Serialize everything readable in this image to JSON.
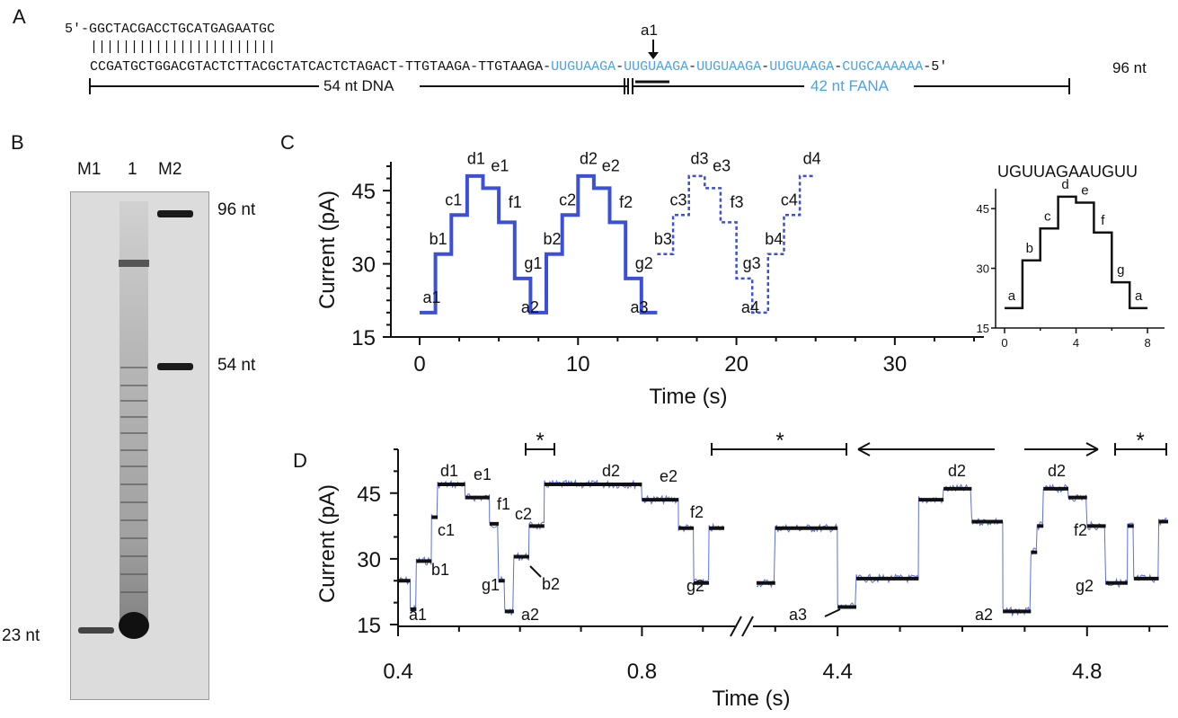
{
  "panels": {
    "a": "A",
    "b": "B",
    "c": "C",
    "d": "D"
  },
  "seq": {
    "top": "5′-GGCTACGACCTGCATGAGAATGC",
    "ticks": "|||||||||||||||||||||||",
    "dna": "CCGATGCTGGACGTACTCTTACGCTATCACTCTAGACT-TTGTAAGA-TTGTAAGA-",
    "fana": [
      "UUGUAAGA",
      "UUGUAAGA",
      "UUGUAAGA",
      "UUGUAAGA",
      "CUGCAAAAAA"
    ],
    "sep": "-",
    "end": "-5′",
    "len": "96 nt",
    "a1": "a1",
    "dna_label": "54 nt DNA",
    "fana_label": "42 nt FANA"
  },
  "colors": {
    "fana": "#4aa3e8",
    "trace": "#3b4fd8",
    "trace_d": "#5a6fe0",
    "black": "#111111"
  },
  "gel": {
    "lanes": [
      "M1",
      "1",
      "M2"
    ],
    "sizes": [
      "96 nt",
      "54 nt",
      "23 nt"
    ]
  },
  "chart_data": [
    {
      "type": "line",
      "title": "",
      "xlabel": "Time (s)",
      "ylabel": "Current (pA)",
      "xlim": [
        0,
        35
      ],
      "ylim": [
        15,
        50
      ],
      "xticks": [
        0,
        10,
        20,
        30
      ],
      "yticks": [
        15,
        30,
        45
      ],
      "series": [
        {
          "style": "solid",
          "x": [
            0,
            1,
            1,
            2,
            2,
            3,
            3,
            4,
            4,
            5,
            5,
            6,
            6,
            7,
            7,
            8,
            8,
            9,
            9,
            10,
            10,
            11,
            11,
            12,
            12,
            13,
            13,
            14,
            14,
            15
          ],
          "y": [
            20,
            20,
            32,
            32,
            40,
            40,
            48,
            48,
            45.5,
            45.5,
            38.5,
            38.5,
            27,
            27,
            20,
            20,
            32,
            32,
            40,
            40,
            48,
            48,
            45.5,
            45.5,
            38.5,
            38.5,
            27,
            27,
            20,
            20
          ]
        },
        {
          "style": "dashed",
          "x": [
            15,
            16,
            16,
            17,
            17,
            18,
            18,
            19,
            19,
            20,
            20,
            21,
            21,
            22,
            22,
            23,
            23,
            24,
            24,
            25
          ],
          "y": [
            32,
            32,
            40,
            40,
            48,
            48,
            45.5,
            45.5,
            38.5,
            38.5,
            27,
            27,
            20,
            20,
            32,
            32,
            40,
            40,
            48,
            48
          ]
        }
      ],
      "labels": [
        {
          "t": "a1",
          "x": 0.2,
          "y": 22
        },
        {
          "t": "b1",
          "x": 0.6,
          "y": 34
        },
        {
          "t": "c1",
          "x": 1.6,
          "y": 42
        },
        {
          "t": "d1",
          "x": 3.0,
          "y": 50.5
        },
        {
          "t": "e1",
          "x": 4.5,
          "y": 49
        },
        {
          "t": "f1",
          "x": 5.6,
          "y": 41.5
        },
        {
          "t": "g1",
          "x": 6.6,
          "y": 29
        },
        {
          "t": "a2",
          "x": 6.4,
          "y": 20
        },
        {
          "t": "b2",
          "x": 7.8,
          "y": 34
        },
        {
          "t": "c2",
          "x": 8.8,
          "y": 42
        },
        {
          "t": "d2",
          "x": 10.1,
          "y": 50.5
        },
        {
          "t": "e2",
          "x": 11.5,
          "y": 49
        },
        {
          "t": "f2",
          "x": 12.6,
          "y": 41.5
        },
        {
          "t": "g2",
          "x": 13.6,
          "y": 29
        },
        {
          "t": "a3",
          "x": 13.3,
          "y": 20
        },
        {
          "t": "b3",
          "x": 14.8,
          "y": 34
        },
        {
          "t": "c3",
          "x": 15.8,
          "y": 42
        },
        {
          "t": "d3",
          "x": 17.1,
          "y": 50.5
        },
        {
          "t": "e3",
          "x": 18.5,
          "y": 49
        },
        {
          "t": "f3",
          "x": 19.6,
          "y": 41.5
        },
        {
          "t": "g3",
          "x": 20.4,
          "y": 29
        },
        {
          "t": "a4",
          "x": 20.3,
          "y": 20
        },
        {
          "t": "b4",
          "x": 21.8,
          "y": 34
        },
        {
          "t": "c4",
          "x": 22.8,
          "y": 42
        },
        {
          "t": "d4",
          "x": 24.2,
          "y": 50.5
        }
      ]
    },
    {
      "type": "line",
      "title": "UGUUAGAAUGUU",
      "xlim": [
        -0.3,
        8.8
      ],
      "ylim": [
        15,
        50
      ],
      "xticks": [
        0,
        4,
        8
      ],
      "yticks": [
        15,
        30,
        45
      ],
      "series": [
        {
          "style": "solid",
          "x": [
            0,
            1,
            1,
            2,
            2,
            3,
            3,
            4,
            4,
            5,
            5,
            6,
            6,
            7,
            7,
            8
          ],
          "y": [
            20,
            20,
            32,
            32,
            40,
            40,
            48,
            48,
            46.5,
            46.5,
            39,
            39,
            26.5,
            26.5,
            20,
            20
          ]
        }
      ],
      "labels": [
        {
          "t": "a",
          "x": 0.4,
          "y": 22
        },
        {
          "t": "b",
          "x": 1.4,
          "y": 34
        },
        {
          "t": "c",
          "x": 2.4,
          "y": 42
        },
        {
          "t": "d",
          "x": 3.4,
          "y": 50
        },
        {
          "t": "e",
          "x": 4.5,
          "y": 48.5
        },
        {
          "t": "f",
          "x": 5.5,
          "y": 41
        },
        {
          "t": "g",
          "x": 6.5,
          "y": 28.5
        },
        {
          "t": "a",
          "x": 7.5,
          "y": 22
        }
      ]
    },
    {
      "type": "line",
      "title": "",
      "xlabel": "Time (s)",
      "ylabel": "Current (pA)",
      "ylim": [
        15,
        55
      ],
      "yticks": [
        15,
        30,
        45
      ],
      "xticklabels": [
        "0.4",
        "0.8",
        "4.4",
        "4.8"
      ],
      "segments_left": {
        "xlim": [
          0.4,
          0.96
        ],
        "levels": [
          {
            "x0": 0.4,
            "x1": 0.42,
            "y": 25
          },
          {
            "x0": 0.42,
            "x1": 0.43,
            "y": 18.5
          },
          {
            "x0": 0.43,
            "x1": 0.455,
            "y": 29.5
          },
          {
            "x0": 0.455,
            "x1": 0.465,
            "y": 39.5
          },
          {
            "x0": 0.465,
            "x1": 0.51,
            "y": 47
          },
          {
            "x0": 0.51,
            "x1": 0.55,
            "y": 44
          },
          {
            "x0": 0.55,
            "x1": 0.565,
            "y": 38
          },
          {
            "x0": 0.565,
            "x1": 0.575,
            "y": 25
          },
          {
            "x0": 0.575,
            "x1": 0.59,
            "y": 18
          },
          {
            "x0": 0.59,
            "x1": 0.615,
            "y": 30.5
          },
          {
            "x0": 0.615,
            "x1": 0.64,
            "y": 37.5
          },
          {
            "x0": 0.64,
            "x1": 0.8,
            "y": 47
          },
          {
            "x0": 0.8,
            "x1": 0.86,
            "y": 43.5
          },
          {
            "x0": 0.86,
            "x1": 0.885,
            "y": 37
          },
          {
            "x0": 0.885,
            "x1": 0.91,
            "y": 24.5
          },
          {
            "x0": 0.91,
            "x1": 0.935,
            "y": 37
          }
        ]
      },
      "segments_right": {
        "xlim": [
          4.26,
          4.93
        ],
        "levels": [
          {
            "x0": 4.27,
            "x1": 4.3,
            "y": 24.5
          },
          {
            "x0": 4.3,
            "x1": 4.4,
            "y": 37
          },
          {
            "x0": 4.4,
            "x1": 4.43,
            "y": 19
          },
          {
            "x0": 4.43,
            "x1": 4.53,
            "y": 25.5
          },
          {
            "x0": 4.53,
            "x1": 4.57,
            "y": 43.5
          },
          {
            "x0": 4.57,
            "x1": 4.615,
            "y": 46
          },
          {
            "x0": 4.615,
            "x1": 4.665,
            "y": 38.5
          },
          {
            "x0": 4.665,
            "x1": 4.71,
            "y": 18
          },
          {
            "x0": 4.71,
            "x1": 4.72,
            "y": 31.5
          },
          {
            "x0": 4.72,
            "x1": 4.73,
            "y": 37.5
          },
          {
            "x0": 4.73,
            "x1": 4.77,
            "y": 46
          },
          {
            "x0": 4.77,
            "x1": 4.8,
            "y": 44
          },
          {
            "x0": 4.8,
            "x1": 4.83,
            "y": 37.5
          },
          {
            "x0": 4.83,
            "x1": 4.865,
            "y": 24.5
          },
          {
            "x0": 4.865,
            "x1": 4.875,
            "y": 37.5
          },
          {
            "x0": 4.875,
            "x1": 4.915,
            "y": 25.5
          },
          {
            "x0": 4.915,
            "x1": 4.93,
            "y": 38.5
          }
        ]
      },
      "labels": [
        "a1",
        "b1",
        "c1",
        "d1",
        "e1",
        "f1",
        "g1",
        "a2",
        "c2",
        "b2",
        "d2",
        "e2",
        "f2",
        "g2",
        "a3",
        "d2",
        "a2",
        "d2",
        "f2",
        "g2"
      ],
      "annotations": [
        "*",
        "*",
        "*"
      ]
    }
  ]
}
